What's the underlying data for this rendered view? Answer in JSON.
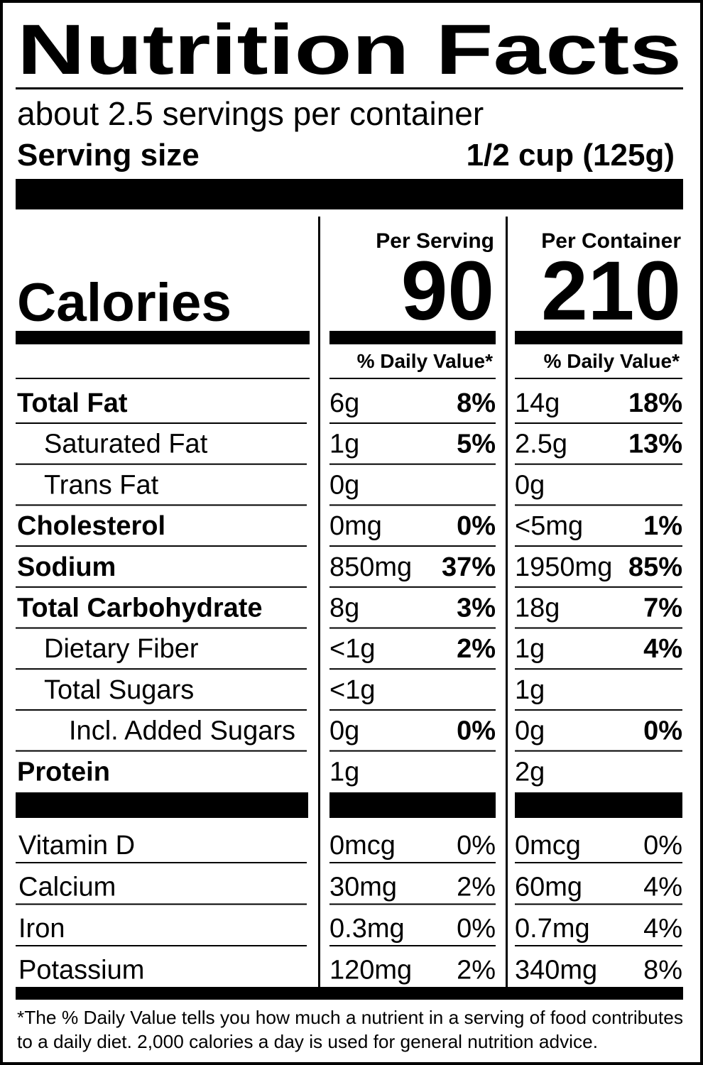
{
  "title": "Nutrition Facts",
  "servings": "about 2.5 servings per container",
  "serving_size": {
    "label": "Serving size",
    "value": "1/2 cup (125g)"
  },
  "calories_label": "Calories",
  "columns": [
    {
      "heading": "Per Serving",
      "calories": "90",
      "dv_heading": "% Daily Value*"
    },
    {
      "heading": "Per Container",
      "calories": "210",
      "dv_heading": "% Daily Value*"
    }
  ],
  "nutrients": [
    {
      "name": "Total Fat",
      "values": [
        [
          "6g",
          "8%"
        ],
        [
          "14g",
          "18%"
        ]
      ]
    },
    {
      "name": "Saturated Fat",
      "values": [
        [
          "1g",
          "5%"
        ],
        [
          "2.5g",
          "13%"
        ]
      ]
    },
    {
      "name": "Trans Fat",
      "values": [
        [
          "0g",
          null
        ],
        [
          "0g",
          null
        ]
      ]
    },
    {
      "name": "Cholesterol",
      "values": [
        [
          "0mg",
          "0%"
        ],
        [
          "<5mg",
          "1%"
        ]
      ]
    },
    {
      "name": "Sodium",
      "values": [
        [
          "850mg",
          "37%"
        ],
        [
          "1950mg",
          "85%"
        ]
      ]
    },
    {
      "name": "Total Carbohydrate",
      "values": [
        [
          "8g",
          "3%"
        ],
        [
          "18g",
          "7%"
        ]
      ]
    },
    {
      "name": "Dietary Fiber",
      "values": [
        [
          "<1g",
          "2%"
        ],
        [
          "1g",
          "4%"
        ]
      ]
    },
    {
      "name": "Total Sugars",
      "values": [
        [
          "<1g",
          null
        ],
        [
          "1g",
          null
        ]
      ]
    },
    {
      "name": "Incl. Added Sugars",
      "values": [
        [
          "0g",
          "0%"
        ],
        [
          "0g",
          "0%"
        ]
      ]
    },
    {
      "name": "Protein",
      "values": [
        [
          "1g",
          null
        ],
        [
          "2g",
          null
        ]
      ]
    }
  ],
  "vitamins": [
    {
      "name": "Vitamin D",
      "values": [
        [
          "0mcg",
          "0%"
        ],
        [
          "0mcg",
          "0%"
        ]
      ]
    },
    {
      "name": "Calcium",
      "values": [
        [
          "30mg",
          "2%"
        ],
        [
          "60mg",
          "4%"
        ]
      ]
    },
    {
      "name": "Iron",
      "values": [
        [
          "0.3mg",
          "0%"
        ],
        [
          "0.7mg",
          "4%"
        ]
      ]
    },
    {
      "name": "Potassium",
      "values": [
        [
          "120mg",
          "2%"
        ],
        [
          "340mg",
          "8%"
        ]
      ]
    }
  ],
  "footnote": [
    "*The % Daily Value tells you how much a nutrient in a serving of food contributes",
    "to a daily diet. 2,000 calories a day is used for general nutrition advice."
  ]
}
